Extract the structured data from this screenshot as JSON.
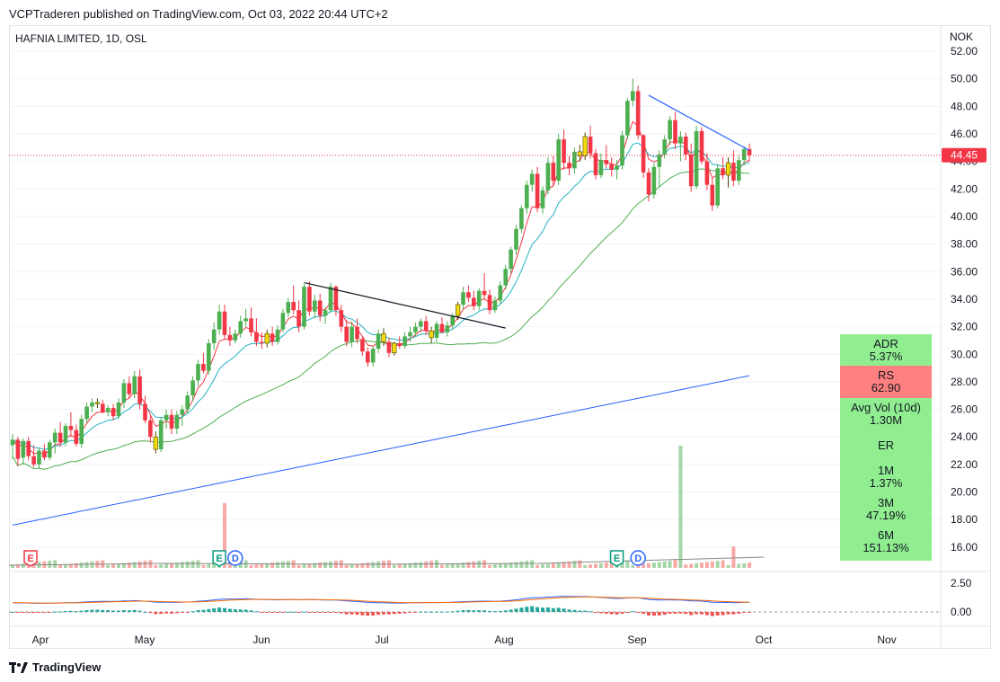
{
  "header": {
    "published": "VCPTraderen published on TradingView.com, Oct 03, 2022 20:44 UTC+2",
    "footer_brand": "TradingView"
  },
  "chart_data": {
    "type": "candlestick",
    "title": "HAFNIA LIMITED, 1D, OSL",
    "currency": "NOK",
    "y_axis": {
      "ticks": [
        "52.00",
        "50.00",
        "48.00",
        "46.00",
        "44.00",
        "42.00",
        "40.00",
        "38.00",
        "36.00",
        "34.00",
        "32.00",
        "30.00",
        "28.00",
        "26.00",
        "24.00",
        "22.00",
        "20.00",
        "18.00",
        "16.00"
      ],
      "range": [
        15,
        53
      ]
    },
    "x_axis": {
      "ticks": [
        "Apr",
        "May",
        "Jun",
        "Jul",
        "Aug",
        "Sep",
        "Oct",
        "Nov"
      ]
    },
    "last_price": {
      "label": "44.45",
      "value": 44.45,
      "color": "#f23645"
    },
    "candles": [
      [
        23.4,
        24.2,
        22.4,
        23.8
      ],
      [
        23.8,
        24.0,
        21.9,
        22.4
      ],
      [
        22.5,
        23.9,
        22.0,
        23.7
      ],
      [
        23.7,
        24.0,
        22.3,
        22.6
      ],
      [
        22.6,
        23.4,
        21.8,
        22.0
      ],
      [
        22.0,
        23.2,
        21.7,
        23.0
      ],
      [
        23.0,
        23.5,
        22.3,
        22.5
      ],
      [
        22.5,
        23.8,
        22.3,
        23.6
      ],
      [
        23.6,
        24.6,
        22.8,
        24.3
      ],
      [
        24.3,
        25.1,
        23.3,
        23.6
      ],
      [
        23.6,
        25.0,
        23.3,
        24.8
      ],
      [
        24.8,
        25.8,
        24.0,
        24.5
      ],
      [
        24.5,
        24.9,
        23.3,
        23.5
      ],
      [
        23.5,
        25.6,
        23.2,
        25.3
      ],
      [
        25.3,
        26.5,
        25.0,
        26.2
      ],
      [
        26.2,
        26.8,
        25.8,
        26.5
      ],
      [
        26.5,
        26.8,
        26.1,
        26.4
      ],
      [
        26.4,
        26.7,
        25.7,
        25.8
      ],
      [
        25.8,
        26.3,
        25.5,
        26.1
      ],
      [
        26.1,
        26.4,
        25.2,
        25.5
      ],
      [
        25.5,
        26.8,
        25.3,
        26.5
      ],
      [
        26.5,
        28.2,
        26.1,
        27.9
      ],
      [
        27.9,
        28.4,
        26.8,
        27.1
      ],
      [
        27.1,
        28.8,
        26.8,
        28.4
      ],
      [
        28.4,
        28.9,
        26.0,
        26.4
      ],
      [
        26.4,
        27.0,
        25.0,
        25.2
      ],
      [
        25.2,
        25.5,
        23.6,
        24.0
      ],
      [
        24.0,
        24.4,
        22.8,
        23.1
      ],
      [
        23.1,
        25.4,
        22.9,
        25.2
      ],
      [
        25.2,
        26.0,
        24.6,
        25.6
      ],
      [
        25.6,
        26.0,
        24.2,
        24.6
      ],
      [
        24.6,
        25.9,
        24.2,
        25.6
      ],
      [
        25.6,
        26.3,
        24.8,
        26.0
      ],
      [
        26.0,
        27.3,
        25.7,
        27.0
      ],
      [
        27.0,
        28.4,
        26.6,
        28.1
      ],
      [
        28.1,
        29.6,
        27.7,
        29.3
      ],
      [
        29.3,
        30.1,
        28.6,
        28.8
      ],
      [
        28.8,
        31.1,
        28.5,
        30.8
      ],
      [
        30.8,
        32.3,
        30.3,
        31.8
      ],
      [
        31.8,
        33.6,
        31.4,
        33.1
      ],
      [
        33.1,
        33.6,
        31.1,
        31.4
      ],
      [
        31.4,
        32.0,
        30.6,
        31.0
      ],
      [
        31.0,
        31.8,
        30.8,
        31.5
      ],
      [
        31.5,
        32.8,
        31.2,
        32.4
      ],
      [
        32.4,
        33.3,
        32.0,
        32.6
      ],
      [
        32.6,
        33.4,
        31.3,
        31.6
      ],
      [
        31.6,
        32.6,
        30.6,
        30.9
      ],
      [
        30.9,
        31.6,
        30.4,
        30.8
      ],
      [
        30.8,
        31.8,
        30.5,
        31.5
      ],
      [
        31.5,
        32.0,
        30.6,
        30.9
      ],
      [
        30.9,
        32.1,
        30.7,
        31.8
      ],
      [
        31.8,
        33.3,
        31.6,
        33.0
      ],
      [
        33.0,
        34.1,
        32.7,
        33.8
      ],
      [
        33.8,
        35.0,
        32.9,
        33.2
      ],
      [
        33.2,
        33.9,
        31.6,
        32.0
      ],
      [
        32.0,
        35.1,
        31.8,
        34.9
      ],
      [
        34.9,
        35.3,
        32.8,
        33.1
      ],
      [
        33.1,
        34.3,
        32.6,
        33.9
      ],
      [
        33.9,
        34.4,
        32.4,
        32.8
      ],
      [
        32.8,
        33.4,
        32.2,
        33.2
      ],
      [
        33.2,
        35.2,
        33.0,
        34.9
      ],
      [
        34.9,
        35.0,
        32.8,
        33.2
      ],
      [
        33.2,
        33.6,
        31.6,
        32.0
      ],
      [
        32.0,
        32.5,
        30.6,
        30.9
      ],
      [
        30.9,
        32.4,
        30.5,
        32.0
      ],
      [
        32.0,
        32.6,
        30.8,
        31.1
      ],
      [
        31.1,
        31.3,
        29.9,
        30.2
      ],
      [
        30.2,
        30.5,
        29.1,
        29.4
      ],
      [
        29.4,
        30.6,
        29.1,
        30.4
      ],
      [
        30.4,
        31.8,
        30.1,
        31.5
      ],
      [
        31.5,
        31.9,
        30.6,
        30.9
      ],
      [
        30.9,
        31.2,
        29.8,
        30.1
      ],
      [
        30.1,
        30.9,
        29.9,
        30.8
      ],
      [
        30.8,
        31.3,
        30.4,
        30.6
      ],
      [
        30.6,
        31.6,
        30.4,
        31.3
      ],
      [
        31.3,
        32.0,
        30.9,
        31.6
      ],
      [
        31.6,
        32.3,
        31.3,
        32.0
      ],
      [
        32.0,
        32.6,
        31.6,
        32.4
      ],
      [
        32.4,
        32.8,
        31.4,
        31.7
      ],
      [
        31.7,
        32.0,
        30.8,
        31.2
      ],
      [
        31.2,
        32.4,
        30.9,
        32.2
      ],
      [
        32.2,
        32.7,
        31.5,
        31.6
      ],
      [
        31.6,
        32.4,
        31.3,
        32.1
      ],
      [
        32.1,
        33.0,
        31.8,
        32.8
      ],
      [
        32.8,
        33.8,
        32.5,
        33.6
      ],
      [
        33.6,
        34.9,
        33.3,
        34.5
      ],
      [
        34.5,
        35.0,
        33.8,
        34.1
      ],
      [
        34.1,
        34.6,
        33.2,
        33.5
      ],
      [
        33.5,
        34.8,
        33.2,
        34.6
      ],
      [
        34.6,
        35.9,
        34.0,
        34.3
      ],
      [
        34.3,
        34.7,
        32.9,
        33.2
      ],
      [
        33.2,
        34.2,
        33.0,
        33.9
      ],
      [
        33.9,
        35.3,
        33.6,
        35.0
      ],
      [
        35.0,
        36.5,
        34.7,
        36.2
      ],
      [
        36.2,
        37.8,
        35.9,
        37.6
      ],
      [
        37.6,
        39.4,
        37.2,
        39.1
      ],
      [
        39.1,
        40.8,
        38.8,
        40.6
      ],
      [
        40.6,
        42.6,
        40.2,
        42.3
      ],
      [
        42.3,
        43.4,
        41.8,
        43.1
      ],
      [
        43.1,
        43.6,
        40.3,
        40.6
      ],
      [
        40.6,
        42.2,
        40.2,
        41.9
      ],
      [
        41.9,
        44.3,
        41.6,
        43.9
      ],
      [
        43.9,
        44.4,
        42.2,
        42.6
      ],
      [
        42.6,
        46.0,
        42.3,
        45.6
      ],
      [
        45.6,
        46.3,
        43.4,
        43.9
      ],
      [
        43.9,
        44.4,
        43.0,
        43.5
      ],
      [
        43.5,
        45.0,
        43.1,
        44.7
      ],
      [
        44.7,
        45.2,
        44.0,
        44.4
      ],
      [
        44.4,
        46.1,
        44.1,
        45.8
      ],
      [
        45.8,
        46.6,
        44.2,
        44.6
      ],
      [
        44.6,
        44.9,
        42.7,
        43.0
      ],
      [
        43.0,
        44.6,
        42.8,
        44.1
      ],
      [
        44.1,
        45.2,
        43.5,
        43.8
      ],
      [
        43.8,
        44.3,
        42.9,
        43.4
      ],
      [
        43.4,
        44.1,
        42.7,
        43.7
      ],
      [
        43.7,
        46.2,
        43.4,
        45.9
      ],
      [
        45.9,
        48.6,
        45.6,
        48.4
      ],
      [
        48.4,
        50.0,
        48.0,
        49.1
      ],
      [
        49.1,
        49.5,
        45.6,
        45.9
      ],
      [
        45.9,
        46.0,
        42.8,
        43.2
      ],
      [
        43.2,
        43.5,
        41.1,
        41.6
      ],
      [
        41.6,
        43.9,
        41.3,
        43.6
      ],
      [
        43.6,
        44.8,
        42.1,
        44.5
      ],
      [
        44.5,
        45.9,
        44.2,
        45.6
      ],
      [
        45.6,
        47.3,
        45.2,
        47.0
      ],
      [
        47.0,
        47.6,
        44.9,
        45.3
      ],
      [
        45.3,
        46.2,
        44.0,
        45.8
      ],
      [
        45.8,
        46.1,
        44.1,
        44.5
      ],
      [
        44.5,
        45.3,
        41.8,
        42.2
      ],
      [
        42.2,
        46.6,
        42.0,
        46.2
      ],
      [
        46.2,
        46.5,
        43.8,
        44.0
      ],
      [
        44.0,
        44.6,
        41.9,
        42.3
      ],
      [
        42.3,
        42.8,
        40.4,
        40.8
      ],
      [
        40.8,
        43.8,
        40.6,
        43.5
      ],
      [
        43.5,
        44.3,
        42.7,
        43.0
      ],
      [
        43.0,
        44.3,
        42.1,
        43.9
      ],
      [
        43.9,
        44.8,
        42.2,
        42.6
      ],
      [
        42.6,
        44.4,
        42.3,
        44.1
      ],
      [
        44.1,
        45.1,
        43.7,
        44.9
      ],
      [
        44.9,
        45.3,
        44.0,
        44.45
      ]
    ],
    "special_candles_yellow": [
      16,
      27,
      48,
      70,
      72,
      79,
      84,
      107,
      108,
      135
    ],
    "volume": {
      "typical": 1,
      "spikes": [
        {
          "index": 40,
          "rel": 18
        },
        {
          "index": 126,
          "rel": 34
        },
        {
          "index": 136,
          "rel": 6
        }
      ]
    },
    "moving_averages": [
      {
        "name": "EMA fast",
        "color": "#f23645"
      },
      {
        "name": "EMA mid",
        "color": "#22b2c4"
      },
      {
        "name": "SMA 50",
        "color": "#4caf50"
      },
      {
        "name": "SMA 200",
        "color": "#2962ff"
      }
    ],
    "trendlines": [
      {
        "from": [
          55,
          35.2
        ],
        "to": [
          93,
          31.9
        ],
        "color": "#131722"
      },
      {
        "from": [
          120,
          48.8
        ],
        "to": [
          139,
          44.8
        ],
        "color": "#2962ff"
      }
    ],
    "events": [
      {
        "type": "E",
        "index": 0,
        "color": "#f23645"
      },
      {
        "type": "E",
        "index": 39,
        "color": "#089981"
      },
      {
        "type": "D",
        "index": 42,
        "color": "#2962ff"
      },
      {
        "type": "E",
        "index": 114,
        "color": "#089981"
      },
      {
        "type": "D",
        "index": 118,
        "color": "#2962ff"
      }
    ],
    "macd": {
      "ticks": [
        "2.50",
        "0.00"
      ]
    },
    "stats_panel": [
      {
        "label": "ADR",
        "value": "5.37%",
        "color": "#90ee90"
      },
      {
        "label": "RS",
        "value": "62.90",
        "color": "#ff8080"
      },
      {
        "label": "Avg Vol (10d)",
        "value": "1.30M",
        "color": "#90ee90"
      },
      {
        "label": "ER",
        "value": "",
        "color": "#90ee90"
      },
      {
        "label": "1M",
        "value": "1.37%",
        "color": "#90ee90"
      },
      {
        "label": "3M",
        "value": "47.19%",
        "color": "#90ee90"
      },
      {
        "label": "6M",
        "value": "151.13%",
        "color": "#90ee90"
      }
    ]
  }
}
